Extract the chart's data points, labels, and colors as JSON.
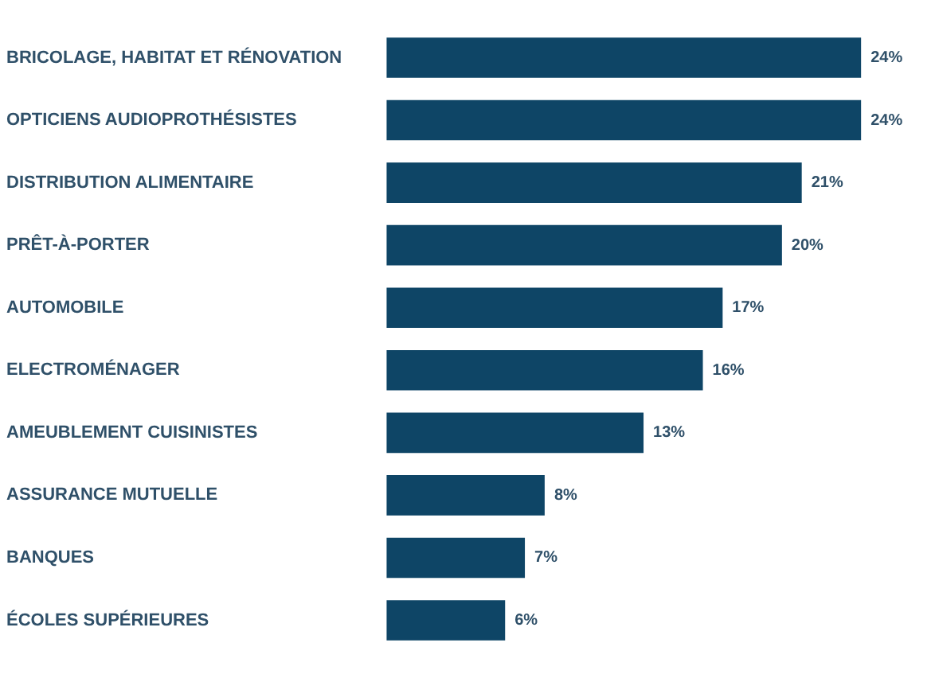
{
  "chart_data": {
    "type": "bar",
    "orientation": "horizontal",
    "categories": [
      "BRICOLAGE, HABITAT ET RÉNOVATION",
      "OPTICIENS AUDIOPROTHÉSISTES",
      "DISTRIBUTION ALIMENTAIRE",
      "PRÊT-À-PORTER",
      "AUTOMOBILE",
      "ELECTROMÉNAGER",
      "AMEUBLEMENT CUISINISTES",
      "ASSURANCE MUTUELLE",
      "BANQUES",
      "ÉCOLES SUPÉRIEURES"
    ],
    "values": [
      24,
      24,
      21,
      20,
      17,
      16,
      13,
      8,
      7,
      6
    ],
    "value_labels": [
      "24%",
      "24%",
      "21%",
      "20%",
      "17%",
      "16%",
      "13%",
      "8%",
      "7%",
      "6%"
    ],
    "color": "#0e4566",
    "tick_labels": "y"
  }
}
